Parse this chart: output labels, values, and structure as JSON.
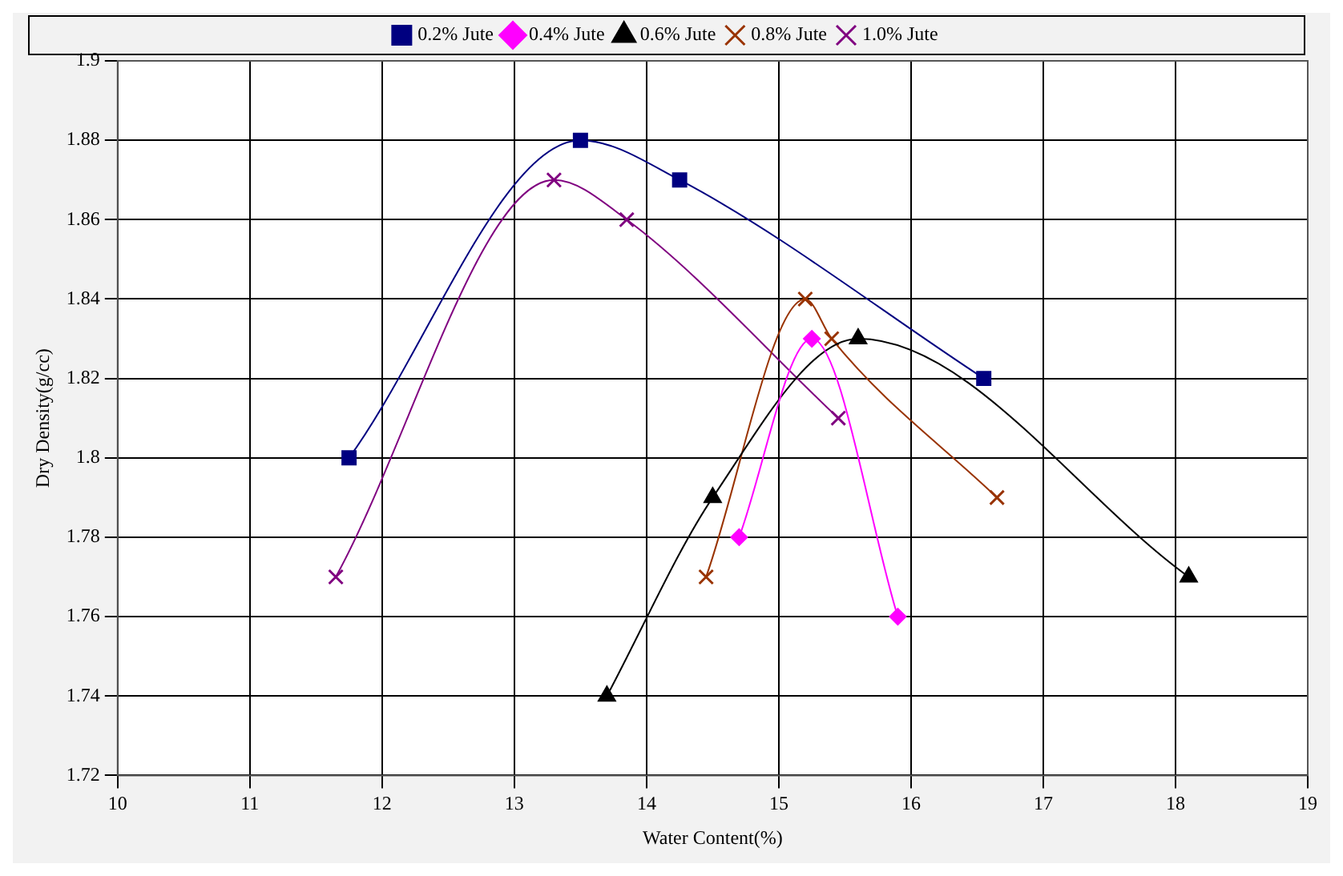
{
  "chart_data": {
    "type": "line",
    "xlabel": "Water Content(%)",
    "ylabel": "Dry Density(g/cc)",
    "xlim": [
      10,
      19
    ],
    "xticks": [
      10,
      11,
      12,
      13,
      14,
      15,
      16,
      17,
      18,
      19
    ],
    "ylim": [
      1.72,
      1.9
    ],
    "yticks": [
      {
        "value": 1.72,
        "label": "1.72"
      },
      {
        "value": 1.74,
        "label": "1.74"
      },
      {
        "value": 1.76,
        "label": "1.76"
      },
      {
        "value": 1.78,
        "label": "1.78"
      },
      {
        "value": 1.8,
        "label": "1.8"
      },
      {
        "value": 1.82,
        "label": "1.82"
      },
      {
        "value": 1.84,
        "label": "1.84"
      },
      {
        "value": 1.86,
        "label": "1.86"
      },
      {
        "value": 1.88,
        "label": "1.88"
      },
      {
        "value": 1.9,
        "label": "1.9"
      }
    ],
    "grid": true,
    "legend": "top",
    "series": [
      {
        "name": "0.2% Jute",
        "color": "#000080",
        "marker": "square",
        "x": [
          11.75,
          13.5,
          14.25,
          16.55
        ],
        "values": [
          1.8,
          1.88,
          1.87,
          1.82
        ]
      },
      {
        "name": "0.4% Jute",
        "color": "#ff00ff",
        "marker": "diamond",
        "x": [
          14.7,
          15.25,
          15.9
        ],
        "values": [
          1.78,
          1.83,
          1.76
        ]
      },
      {
        "name": "0.6% Jute",
        "color": "#000000",
        "marker": "triangle",
        "x": [
          13.7,
          14.5,
          15.6,
          18.1
        ],
        "values": [
          1.74,
          1.79,
          1.83,
          1.77
        ]
      },
      {
        "name": "0.8% Jute",
        "color": "#993300",
        "marker": "cross",
        "x": [
          14.45,
          15.2,
          15.4,
          16.65
        ],
        "values": [
          1.77,
          1.84,
          1.83,
          1.79
        ]
      },
      {
        "name": "1.0% Jute",
        "color": "#800080",
        "marker": "cross",
        "x": [
          11.65,
          13.3,
          13.85,
          15.45
        ],
        "values": [
          1.77,
          1.87,
          1.86,
          1.81
        ]
      }
    ]
  }
}
